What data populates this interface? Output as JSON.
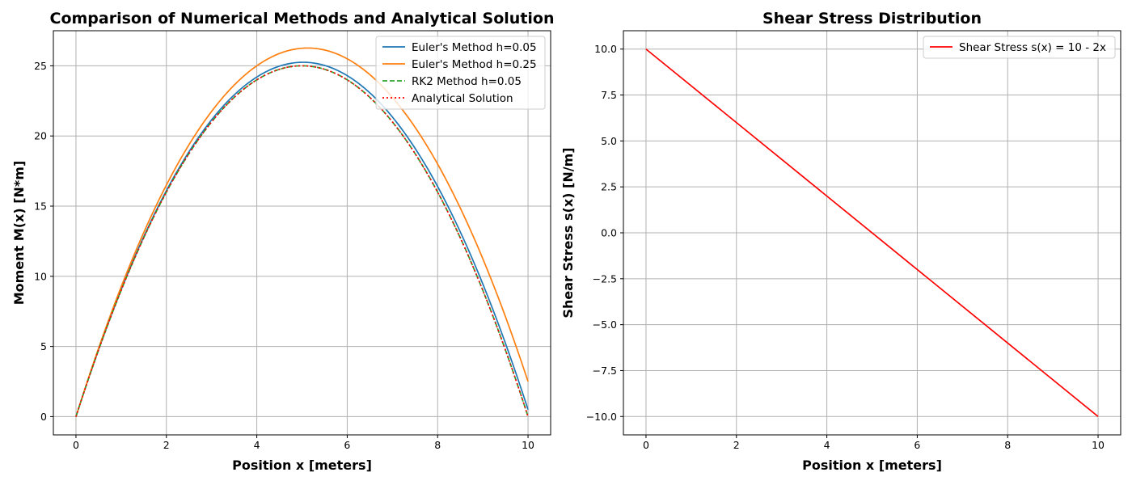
{
  "chart_data": [
    {
      "type": "line",
      "title": "Comparison of Numerical Methods and Analytical Solution",
      "xlabel": "Position x [meters]",
      "ylabel": "Moment M(x) [N*m]",
      "xlim": [
        -0.5,
        10.5
      ],
      "ylim": [
        -1.3,
        27.5
      ],
      "xticks": [
        0,
        2,
        4,
        6,
        8,
        10
      ],
      "xtick_labels": [
        "0",
        "2",
        "4",
        "6",
        "8",
        "10"
      ],
      "yticks": [
        0,
        5,
        10,
        15,
        20,
        25
      ],
      "ytick_labels": [
        "0",
        "5",
        "10",
        "15",
        "20",
        "25"
      ],
      "grid": true,
      "legend_position": "upper right",
      "x": [
        0,
        1,
        2,
        3,
        4,
        5,
        6,
        7,
        8,
        9,
        10
      ],
      "series": [
        {
          "name": "Euler's Method h=0.05",
          "color": "#1f77b4",
          "dash": "solid",
          "values": [
            0,
            9.05,
            16.1,
            21.15,
            24.2,
            25.25,
            24.3,
            21.35,
            16.4,
            9.45,
            0.5
          ]
        },
        {
          "name": "Euler's Method h=0.25",
          "color": "#ff7f0e",
          "dash": "solid",
          "values": [
            0,
            9.25,
            16.5,
            21.75,
            25.0,
            26.25,
            25.5,
            22.75,
            18.0,
            11.25,
            2.5
          ]
        },
        {
          "name": "RK2 Method h=0.05",
          "color": "#2ca02c",
          "dash": "dashed",
          "values": [
            0,
            9,
            16,
            21,
            24,
            25,
            24,
            21,
            16,
            9,
            0
          ]
        },
        {
          "name": "Analytical Solution",
          "color": "#ff0000",
          "dash": "dotted",
          "values": [
            0,
            9,
            16,
            21,
            24,
            25,
            24,
            21,
            16,
            9,
            0
          ]
        }
      ]
    },
    {
      "type": "line",
      "title": "Shear Stress Distribution",
      "xlabel": "Position x [meters]",
      "ylabel": "Shear Stress s(x) [N/m]",
      "xlim": [
        -0.5,
        10.5
      ],
      "ylim": [
        -11.0,
        11.0
      ],
      "xticks": [
        0,
        2,
        4,
        6,
        8,
        10
      ],
      "xtick_labels": [
        "0",
        "2",
        "4",
        "6",
        "8",
        "10"
      ],
      "yticks": [
        10,
        7.5,
        5,
        2.5,
        0,
        -2.5,
        -5,
        -7.5,
        -10
      ],
      "ytick_labels": [
        "10.0",
        "7.5",
        "5.0",
        "2.5",
        "0.0",
        "−2.5",
        "−5.0",
        "−7.5",
        "−10.0"
      ],
      "grid": true,
      "legend_position": "upper right",
      "x": [
        0,
        10
      ],
      "series": [
        {
          "name": "Shear Stress s(x) = 10 - 2x",
          "color": "#ff0000",
          "dash": "solid",
          "values": [
            10,
            -10
          ]
        }
      ]
    }
  ]
}
